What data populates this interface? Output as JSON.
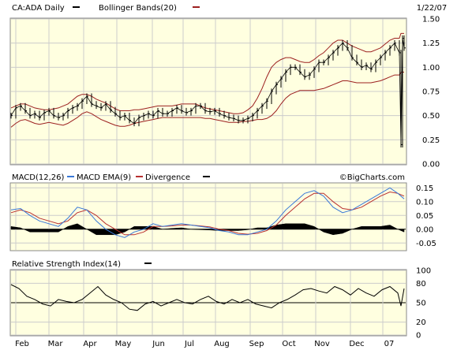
{
  "header": {
    "symbol_label": "CA:ADA Daily",
    "overlay_label": "Bollinger Bands(20)",
    "date": "1/22/07"
  },
  "macd_panel": {
    "macd_label": "MACD(12,26)",
    "ema_label": "MACD EMA(9)",
    "divergence_label": "Divergence",
    "brand": "©BigCharts.com"
  },
  "rsi_panel": {
    "label": "Relative Strength Index(14)"
  },
  "colors": {
    "panel_bg": "#ffffe0",
    "grid": "#cccccc",
    "price": "#000000",
    "bollinger": "#9c2020",
    "macd": "#000000",
    "macd_ema": "#3878d8",
    "divergence_line": "#b83030"
  },
  "chart_data": [
    {
      "type": "line",
      "title": "CA:ADA Daily",
      "x_tick_labels": [
        "Feb",
        "Mar",
        "Apr",
        "May",
        "Jun",
        "Jul",
        "Aug",
        "Sep",
        "Oct",
        "Nov",
        "Dec",
        "07"
      ],
      "y_tick_labels": [
        "0.00",
        "0.25",
        "0.50",
        "0.75",
        "1.00",
        "1.25",
        "1.50"
      ],
      "ylim": [
        0,
        1.5
      ],
      "grid": true,
      "legend": "top-left",
      "x": [
        0,
        6,
        12,
        18,
        24,
        30,
        36,
        42,
        48,
        54,
        60,
        66,
        72,
        78,
        84,
        90,
        96,
        102,
        108,
        114,
        120,
        126,
        132,
        138,
        144,
        150,
        156,
        162,
        168,
        174,
        180,
        186,
        192,
        198,
        204,
        210,
        216,
        222,
        228,
        234,
        240,
        246,
        252,
        258,
        264,
        270,
        276,
        282,
        288,
        294,
        300,
        306,
        312,
        318,
        324,
        330,
        336,
        342,
        348,
        354,
        360,
        366,
        372,
        378,
        384,
        390,
        396,
        402,
        408,
        414,
        420,
        426,
        432,
        438,
        444,
        450,
        456,
        462,
        468,
        474,
        480,
        486,
        492,
        494,
        496,
        498
      ],
      "series": [
        {
          "name": "CA:ADA Daily",
          "values": [
            0.5,
            0.58,
            0.6,
            0.55,
            0.5,
            0.52,
            0.48,
            0.53,
            0.55,
            0.5,
            0.48,
            0.5,
            0.55,
            0.58,
            0.6,
            0.65,
            0.7,
            0.62,
            0.6,
            0.58,
            0.62,
            0.56,
            0.52,
            0.48,
            0.5,
            0.45,
            0.42,
            0.48,
            0.5,
            0.52,
            0.5,
            0.55,
            0.52,
            0.52,
            0.55,
            0.58,
            0.55,
            0.53,
            0.55,
            0.6,
            0.6,
            0.55,
            0.54,
            0.55,
            0.52,
            0.5,
            0.48,
            0.47,
            0.45,
            0.45,
            0.47,
            0.5,
            0.55,
            0.6,
            0.65,
            0.75,
            0.82,
            0.88,
            0.95,
            1.0,
            1.0,
            0.95,
            0.9,
            0.92,
            0.98,
            1.05,
            1.05,
            1.1,
            1.15,
            1.2,
            1.25,
            1.2,
            1.1,
            1.05,
            1.0,
            1.02,
            0.98,
            1.05,
            1.1,
            1.15,
            1.2,
            1.25,
            1.15,
            0.2,
            1.3,
            1.2
          ]
        },
        {
          "name": "Bollinger Bands(20) upper",
          "values": [
            0.58,
            0.6,
            0.62,
            0.62,
            0.6,
            0.58,
            0.57,
            0.56,
            0.56,
            0.57,
            0.58,
            0.6,
            0.62,
            0.66,
            0.7,
            0.72,
            0.72,
            0.7,
            0.67,
            0.65,
            0.63,
            0.6,
            0.57,
            0.55,
            0.55,
            0.55,
            0.56,
            0.56,
            0.57,
            0.58,
            0.59,
            0.6,
            0.6,
            0.6,
            0.6,
            0.61,
            0.62,
            0.62,
            0.62,
            0.62,
            0.6,
            0.58,
            0.57,
            0.56,
            0.55,
            0.54,
            0.53,
            0.52,
            0.52,
            0.53,
            0.56,
            0.6,
            0.68,
            0.78,
            0.9,
            1.0,
            1.05,
            1.08,
            1.1,
            1.1,
            1.08,
            1.06,
            1.05,
            1.05,
            1.08,
            1.12,
            1.15,
            1.2,
            1.25,
            1.28,
            1.28,
            1.25,
            1.22,
            1.2,
            1.18,
            1.16,
            1.16,
            1.18,
            1.2,
            1.24,
            1.28,
            1.3,
            1.3,
            1.35,
            1.35,
            1.35
          ]
        },
        {
          "name": "Bollinger Bands(20) lower",
          "values": [
            0.38,
            0.42,
            0.45,
            0.46,
            0.44,
            0.42,
            0.41,
            0.42,
            0.43,
            0.42,
            0.41,
            0.4,
            0.42,
            0.45,
            0.48,
            0.52,
            0.54,
            0.52,
            0.49,
            0.46,
            0.44,
            0.42,
            0.4,
            0.39,
            0.39,
            0.4,
            0.42,
            0.43,
            0.44,
            0.45,
            0.46,
            0.47,
            0.48,
            0.48,
            0.48,
            0.48,
            0.48,
            0.48,
            0.48,
            0.48,
            0.48,
            0.47,
            0.47,
            0.46,
            0.45,
            0.44,
            0.43,
            0.43,
            0.43,
            0.44,
            0.44,
            0.45,
            0.46,
            0.46,
            0.47,
            0.5,
            0.55,
            0.62,
            0.68,
            0.72,
            0.74,
            0.76,
            0.76,
            0.76,
            0.76,
            0.77,
            0.78,
            0.8,
            0.82,
            0.84,
            0.86,
            0.86,
            0.85,
            0.84,
            0.84,
            0.84,
            0.84,
            0.85,
            0.86,
            0.88,
            0.9,
            0.92,
            0.92,
            0.95,
            0.95,
            0.95
          ]
        }
      ]
    },
    {
      "type": "line",
      "title": "MACD(12,26)",
      "y_tick_labels": [
        "-0.05",
        "0.00",
        "0.05",
        "0.10",
        "0.15"
      ],
      "ylim": [
        -0.075,
        0.165
      ],
      "x": [
        0,
        12,
        24,
        36,
        48,
        60,
        72,
        84,
        96,
        108,
        120,
        132,
        144,
        156,
        168,
        180,
        192,
        204,
        216,
        228,
        240,
        252,
        264,
        276,
        288,
        300,
        312,
        324,
        336,
        348,
        360,
        372,
        384,
        396,
        408,
        420,
        432,
        444,
        456,
        468,
        480,
        490,
        498
      ],
      "series": [
        {
          "name": "MACD(12,26)",
          "values": [
            0.07,
            0.075,
            0.05,
            0.03,
            0.02,
            0.01,
            0.04,
            0.08,
            0.07,
            0.03,
            0.0,
            -0.02,
            -0.03,
            -0.01,
            0.0,
            0.02,
            0.01,
            0.015,
            0.02,
            0.015,
            0.01,
            0.005,
            -0.005,
            -0.01,
            -0.02,
            -0.02,
            -0.01,
            0.0,
            0.03,
            0.07,
            0.1,
            0.13,
            0.14,
            0.12,
            0.08,
            0.06,
            0.07,
            0.09,
            0.11,
            0.13,
            0.15,
            0.13,
            0.11
          ]
        },
        {
          "name": "MACD EMA(9)",
          "values": [
            0.06,
            0.07,
            0.06,
            0.04,
            0.03,
            0.02,
            0.03,
            0.06,
            0.07,
            0.05,
            0.02,
            0.0,
            -0.02,
            -0.02,
            -0.01,
            0.01,
            0.01,
            0.012,
            0.015,
            0.015,
            0.012,
            0.008,
            0.0,
            -0.005,
            -0.015,
            -0.018,
            -0.015,
            -0.005,
            0.015,
            0.05,
            0.08,
            0.11,
            0.13,
            0.13,
            0.1,
            0.075,
            0.07,
            0.08,
            0.1,
            0.12,
            0.135,
            0.13,
            0.12
          ]
        },
        {
          "name": "Divergence",
          "values": [
            0.01,
            0.005,
            -0.01,
            -0.01,
            -0.01,
            -0.01,
            0.01,
            0.02,
            0.0,
            -0.02,
            -0.02,
            -0.02,
            -0.01,
            0.01,
            0.01,
            0.01,
            0.0,
            0.003,
            0.005,
            0.0,
            -0.002,
            -0.003,
            -0.005,
            -0.005,
            -0.005,
            -0.002,
            0.005,
            0.005,
            0.015,
            0.02,
            0.02,
            0.02,
            0.01,
            -0.01,
            -0.02,
            -0.015,
            0.0,
            0.01,
            0.01,
            0.01,
            0.015,
            0.0,
            -0.01
          ]
        }
      ]
    },
    {
      "type": "line",
      "title": "Relative Strength Index(14)",
      "y_tick_labels": [
        "0",
        "20",
        "50",
        "80",
        "100"
      ],
      "ylim": [
        0,
        100
      ],
      "x": [
        0,
        10,
        20,
        30,
        40,
        50,
        60,
        70,
        80,
        90,
        100,
        110,
        120,
        130,
        140,
        150,
        160,
        170,
        180,
        190,
        200,
        210,
        220,
        230,
        240,
        250,
        260,
        270,
        280,
        290,
        300,
        310,
        320,
        330,
        340,
        350,
        360,
        370,
        380,
        390,
        400,
        410,
        420,
        430,
        440,
        450,
        460,
        470,
        480,
        490,
        494,
        498
      ],
      "series": [
        {
          "name": "Relative Strength Index(14)",
          "values": [
            78,
            72,
            60,
            55,
            48,
            45,
            55,
            52,
            50,
            55,
            65,
            75,
            62,
            55,
            50,
            40,
            38,
            48,
            52,
            45,
            50,
            55,
            50,
            48,
            55,
            60,
            52,
            48,
            55,
            50,
            55,
            48,
            45,
            42,
            50,
            55,
            62,
            70,
            72,
            68,
            65,
            75,
            70,
            62,
            72,
            65,
            60,
            70,
            75,
            65,
            45,
            72
          ]
        }
      ]
    }
  ]
}
